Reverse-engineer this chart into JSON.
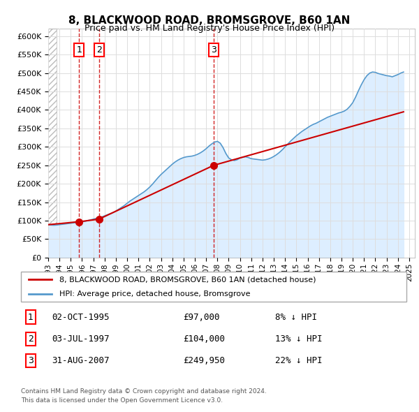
{
  "title": "8, BLACKWOOD ROAD, BROMSGROVE, B60 1AN",
  "subtitle": "Price paid vs. HM Land Registry's House Price Index (HPI)",
  "ylim": [
    0,
    620000
  ],
  "yticks": [
    0,
    50000,
    100000,
    150000,
    200000,
    250000,
    300000,
    350000,
    400000,
    450000,
    500000,
    550000,
    600000
  ],
  "xlim_start": 1993.0,
  "xlim_end": 2025.5,
  "sales": [
    {
      "num": 1,
      "date": "02-OCT-1995",
      "year": 1995.75,
      "price": 97000,
      "pct": "8%",
      "dir": "↓"
    },
    {
      "num": 2,
      "date": "03-JUL-1997",
      "year": 1997.5,
      "price": 104000,
      "pct": "13%",
      "dir": "↓"
    },
    {
      "num": 3,
      "date": "31-AUG-2007",
      "year": 2007.67,
      "price": 249950,
      "pct": "22%",
      "dir": "↓"
    }
  ],
  "red_line_color": "#cc0000",
  "blue_line_color": "#5599cc",
  "blue_fill_color": "#ddeeff",
  "hatch_color": "#bbbbbb",
  "grid_color": "#dddddd",
  "legend_label_red": "8, BLACKWOOD ROAD, BROMSGROVE, B60 1AN (detached house)",
  "legend_label_blue": "HPI: Average price, detached house, Bromsgrove",
  "footer1": "Contains HM Land Registry data © Crown copyright and database right 2024.",
  "footer2": "This data is licensed under the Open Government Licence v3.0.",
  "hpi_years": [
    1993.0,
    1993.25,
    1993.5,
    1993.75,
    1994.0,
    1994.25,
    1994.5,
    1994.75,
    1995.0,
    1995.25,
    1995.5,
    1995.75,
    1996.0,
    1996.25,
    1996.5,
    1996.75,
    1997.0,
    1997.25,
    1997.5,
    1997.75,
    1998.0,
    1998.25,
    1998.5,
    1998.75,
    1999.0,
    1999.25,
    1999.5,
    1999.75,
    2000.0,
    2000.25,
    2000.5,
    2000.75,
    2001.0,
    2001.25,
    2001.5,
    2001.75,
    2002.0,
    2002.25,
    2002.5,
    2002.75,
    2003.0,
    2003.25,
    2003.5,
    2003.75,
    2004.0,
    2004.25,
    2004.5,
    2004.75,
    2005.0,
    2005.25,
    2005.5,
    2005.75,
    2006.0,
    2006.25,
    2006.5,
    2006.75,
    2007.0,
    2007.25,
    2007.5,
    2007.75,
    2008.0,
    2008.25,
    2008.5,
    2008.75,
    2009.0,
    2009.25,
    2009.5,
    2009.75,
    2010.0,
    2010.25,
    2010.5,
    2010.75,
    2011.0,
    2011.25,
    2011.5,
    2011.75,
    2012.0,
    2012.25,
    2012.5,
    2012.75,
    2013.0,
    2013.25,
    2013.5,
    2013.75,
    2014.0,
    2014.25,
    2014.5,
    2014.75,
    2015.0,
    2015.25,
    2015.5,
    2015.75,
    2016.0,
    2016.25,
    2016.5,
    2016.75,
    2017.0,
    2017.25,
    2017.5,
    2017.75,
    2018.0,
    2018.25,
    2018.5,
    2018.75,
    2019.0,
    2019.25,
    2019.5,
    2019.75,
    2020.0,
    2020.25,
    2020.5,
    2020.75,
    2021.0,
    2021.25,
    2021.5,
    2021.75,
    2022.0,
    2022.25,
    2022.5,
    2022.75,
    2023.0,
    2023.25,
    2023.5,
    2023.75,
    2024.0,
    2024.25,
    2024.5
  ],
  "hpi_values": [
    89000,
    88000,
    87500,
    88000,
    89000,
    90000,
    91000,
    92000,
    93000,
    94000,
    95000,
    95500,
    97000,
    98000,
    100000,
    102000,
    104000,
    106000,
    108000,
    110000,
    113000,
    116000,
    119000,
    122000,
    126000,
    131000,
    136000,
    141000,
    147000,
    153000,
    158000,
    163000,
    168000,
    173000,
    178000,
    184000,
    191000,
    199000,
    208000,
    217000,
    225000,
    232000,
    239000,
    246000,
    253000,
    259000,
    264000,
    268000,
    271000,
    273000,
    274000,
    275000,
    277000,
    280000,
    284000,
    289000,
    295000,
    302000,
    308000,
    313000,
    315000,
    310000,
    298000,
    282000,
    270000,
    265000,
    263000,
    265000,
    270000,
    272000,
    273000,
    271000,
    268000,
    267000,
    266000,
    265000,
    264000,
    265000,
    267000,
    270000,
    274000,
    279000,
    285000,
    292000,
    300000,
    308000,
    316000,
    323000,
    330000,
    336000,
    342000,
    347000,
    352000,
    357000,
    361000,
    364000,
    368000,
    372000,
    376000,
    380000,
    383000,
    386000,
    389000,
    392000,
    394000,
    397000,
    402000,
    410000,
    420000,
    435000,
    452000,
    468000,
    482000,
    493000,
    500000,
    503000,
    502000,
    499000,
    497000,
    495000,
    493000,
    492000,
    490000,
    493000,
    496000,
    500000,
    503000
  ],
  "red_years": [
    1993.0,
    1995.75,
    1997.5,
    2007.67,
    2024.5
  ],
  "red_values": [
    89000,
    97000,
    104000,
    249950,
    395000
  ]
}
